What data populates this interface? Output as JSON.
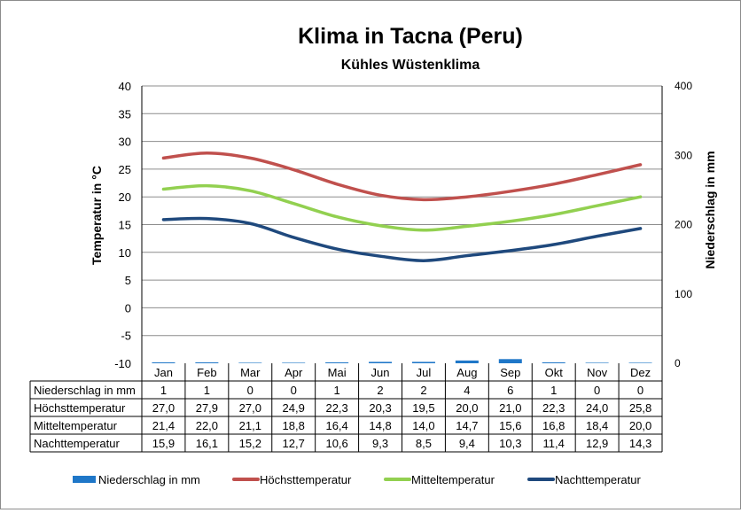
{
  "chart_data": {
    "type": "line",
    "title": "Klima in Tacna (Peru)",
    "subtitle": "Kühles Wüstenklima",
    "ylabel": "Temperatur in °C",
    "y2label": "Niederschlag in mm",
    "ylim": [
      -10,
      40
    ],
    "y2lim": [
      0,
      400
    ],
    "yticks": [
      "40",
      "35",
      "30",
      "25",
      "20",
      "15",
      "10",
      "5",
      "0",
      "-5",
      "-10"
    ],
    "y2ticks": [
      "400",
      "300",
      "200",
      "100",
      "0"
    ],
    "grid": true,
    "legend_position": "bottom",
    "categories": [
      "Jan",
      "Feb",
      "Mar",
      "Apr",
      "Mai",
      "Jun",
      "Jul",
      "Aug",
      "Sep",
      "Okt",
      "Nov",
      "Dez"
    ],
    "series": [
      {
        "name": "Niederschlag in mm",
        "type": "bar",
        "axis": "right",
        "color": "#1f77c8",
        "values": [
          1,
          1,
          0,
          0,
          1,
          2,
          2,
          4,
          6,
          1,
          0,
          0
        ],
        "labels": [
          "1",
          "1",
          "0",
          "0",
          "1",
          "2",
          "2",
          "4",
          "6",
          "1",
          "0",
          "0"
        ]
      },
      {
        "name": "Höchsttemperatur",
        "type": "line",
        "axis": "left",
        "color": "#c0504d",
        "values": [
          27.0,
          27.9,
          27.0,
          24.9,
          22.3,
          20.3,
          19.5,
          20.0,
          21.0,
          22.3,
          24.0,
          25.8
        ],
        "labels": [
          "27,0",
          "27,9",
          "27,0",
          "24,9",
          "22,3",
          "20,3",
          "19,5",
          "20,0",
          "21,0",
          "22,3",
          "24,0",
          "25,8"
        ]
      },
      {
        "name": "Mitteltemperatur",
        "type": "line",
        "axis": "left",
        "color": "#92d050",
        "values": [
          21.4,
          22.0,
          21.1,
          18.8,
          16.4,
          14.8,
          14.0,
          14.7,
          15.6,
          16.8,
          18.4,
          20.0
        ],
        "labels": [
          "21,4",
          "22,0",
          "21,1",
          "18,8",
          "16,4",
          "14,8",
          "14,0",
          "14,7",
          "15,6",
          "16,8",
          "18,4",
          "20,0"
        ]
      },
      {
        "name": "Nachttemperatur",
        "type": "line",
        "axis": "left",
        "color": "#1f497d",
        "values": [
          15.9,
          16.1,
          15.2,
          12.7,
          10.6,
          9.3,
          8.5,
          9.4,
          10.3,
          11.4,
          12.9,
          14.3
        ],
        "labels": [
          "15,9",
          "16,1",
          "15,2",
          "12,7",
          "10,6",
          "9,3",
          "8,5",
          "9,4",
          "10,3",
          "11,4",
          "12,9",
          "14,3"
        ]
      }
    ]
  }
}
